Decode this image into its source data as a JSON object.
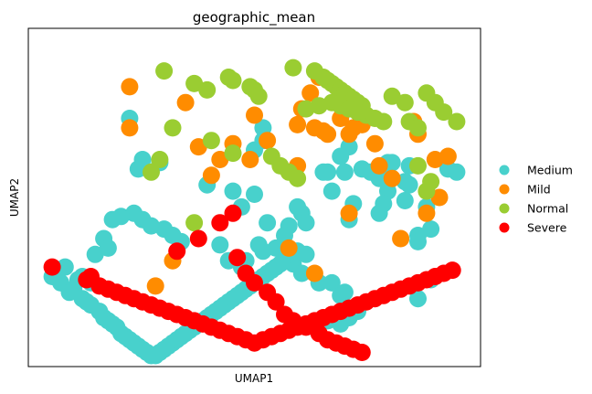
{
  "chart_data": {
    "type": "scatter",
    "title": "geographic_mean",
    "xlabel": "UMAP1",
    "ylabel": "UMAP2",
    "xlim": [
      0,
      100
    ],
    "ylim": [
      0,
      100
    ],
    "ticks": false,
    "grid": false,
    "legend": "right",
    "series": [
      {
        "name": "Medium",
        "color": "#48d1cc",
        "points": [
          [
            21,
            75
          ],
          [
            50,
            65
          ],
          [
            52,
            68
          ],
          [
            24,
            62
          ],
          [
            23,
            59
          ],
          [
            28,
            61
          ],
          [
            45,
            52
          ],
          [
            50,
            51
          ],
          [
            47,
            47
          ],
          [
            39,
            54
          ],
          [
            52,
            72
          ],
          [
            67,
            58
          ],
          [
            72,
            66
          ],
          [
            70,
            63
          ],
          [
            71,
            58
          ],
          [
            66,
            58
          ],
          [
            68,
            52
          ],
          [
            60,
            47
          ],
          [
            61,
            45
          ],
          [
            62,
            42
          ],
          [
            75,
            59
          ],
          [
            77,
            58
          ],
          [
            79,
            56
          ],
          [
            80,
            57
          ],
          [
            82,
            61
          ],
          [
            81,
            52
          ],
          [
            80,
            48
          ],
          [
            86,
            60
          ],
          [
            85,
            55
          ],
          [
            79,
            45
          ],
          [
            73,
            48
          ],
          [
            72,
            43
          ],
          [
            81,
            61
          ],
          [
            86,
            54
          ],
          [
            85,
            49
          ],
          [
            91,
            40
          ],
          [
            90,
            47
          ],
          [
            88,
            38
          ],
          [
            88,
            36
          ],
          [
            91,
            24
          ],
          [
            88,
            18
          ],
          [
            95,
            59
          ],
          [
            97,
            58
          ],
          [
            53,
            42
          ],
          [
            58,
            41
          ],
          [
            57,
            38
          ],
          [
            51,
            35
          ],
          [
            55,
            34
          ],
          [
            60,
            33
          ],
          [
            62,
            32
          ],
          [
            59,
            29
          ],
          [
            61,
            26
          ],
          [
            65,
            23
          ],
          [
            68,
            23
          ],
          [
            71,
            20
          ],
          [
            70,
            19
          ],
          [
            74,
            14
          ],
          [
            72,
            12
          ],
          [
            70,
            10
          ],
          [
            67,
            11
          ],
          [
            52,
            33
          ],
          [
            48,
            30
          ],
          [
            47,
            28
          ],
          [
            44,
            30
          ],
          [
            42,
            35
          ],
          [
            33,
            36
          ],
          [
            31,
            38
          ],
          [
            29,
            40
          ],
          [
            26,
            41
          ],
          [
            24,
            43
          ],
          [
            22,
            45
          ],
          [
            19,
            44
          ],
          [
            17,
            43
          ],
          [
            15,
            37
          ],
          [
            13,
            32
          ],
          [
            16,
            34
          ],
          [
            10,
            25
          ],
          [
            12,
            23
          ],
          [
            6,
            28
          ],
          [
            4,
            27
          ],
          [
            3,
            25
          ],
          [
            5,
            23
          ],
          [
            7,
            20
          ],
          [
            9,
            24
          ],
          [
            8,
            21
          ],
          [
            10,
            18
          ],
          [
            11,
            17
          ],
          [
            12,
            16
          ],
          [
            14,
            14
          ],
          [
            15,
            12
          ],
          [
            16,
            11
          ],
          [
            17,
            10
          ],
          [
            18,
            9
          ],
          [
            19,
            7
          ],
          [
            20,
            6
          ],
          [
            21,
            5
          ],
          [
            22,
            4
          ],
          [
            23,
            3
          ],
          [
            24,
            2
          ],
          [
            25,
            1
          ],
          [
            26,
            0
          ],
          [
            27,
            0
          ],
          [
            28,
            1
          ],
          [
            29,
            2
          ],
          [
            30,
            3
          ],
          [
            31,
            4
          ],
          [
            32,
            5
          ],
          [
            33,
            6
          ],
          [
            34,
            7
          ],
          [
            35,
            8
          ],
          [
            36,
            9
          ],
          [
            37,
            10
          ],
          [
            38,
            11
          ],
          [
            39,
            12
          ],
          [
            40,
            13
          ],
          [
            41,
            14
          ],
          [
            42,
            15
          ],
          [
            43,
            16
          ],
          [
            44,
            17
          ],
          [
            45,
            18
          ],
          [
            46,
            19
          ],
          [
            47,
            20
          ],
          [
            48,
            21
          ],
          [
            49,
            22
          ],
          [
            50,
            23
          ],
          [
            51,
            24
          ],
          [
            52,
            25
          ],
          [
            53,
            26
          ],
          [
            54,
            27
          ],
          [
            55,
            28
          ],
          [
            56,
            29
          ],
          [
            57,
            30
          ],
          [
            58,
            31
          ],
          [
            59,
            32
          ],
          [
            60,
            33
          ]
        ]
      },
      {
        "name": "Mild",
        "color": "#ff8c00",
        "points": [
          [
            21,
            85
          ],
          [
            34,
            80
          ],
          [
            21,
            72
          ],
          [
            50,
            76
          ],
          [
            60,
            73
          ],
          [
            63,
            83
          ],
          [
            65,
            88
          ],
          [
            61,
            78
          ],
          [
            64,
            72
          ],
          [
            66,
            71
          ],
          [
            67,
            70
          ],
          [
            70,
            75
          ],
          [
            72,
            70
          ],
          [
            73,
            72
          ],
          [
            75,
            73
          ],
          [
            78,
            67
          ],
          [
            82,
            56
          ],
          [
            87,
            74
          ],
          [
            88,
            70
          ],
          [
            92,
            62
          ],
          [
            93,
            50
          ],
          [
            95,
            63
          ],
          [
            49,
            62
          ],
          [
            42,
            62
          ],
          [
            40,
            57
          ],
          [
            37,
            66
          ],
          [
            45,
            67
          ],
          [
            53,
            68
          ],
          [
            60,
            60
          ],
          [
            72,
            45
          ],
          [
            58,
            34
          ],
          [
            64,
            26
          ],
          [
            27,
            22
          ],
          [
            31,
            30
          ],
          [
            84,
            37
          ],
          [
            79,
            60
          ],
          [
            90,
            45
          ]
        ]
      },
      {
        "name": "Normal",
        "color": "#9acd32",
        "points": [
          [
            29,
            90
          ],
          [
            36,
            86
          ],
          [
            39,
            84
          ],
          [
            44,
            88
          ],
          [
            45,
            87
          ],
          [
            49,
            85
          ],
          [
            50,
            84
          ],
          [
            51,
            82
          ],
          [
            59,
            91
          ],
          [
            64,
            90
          ],
          [
            66,
            88
          ],
          [
            67,
            87
          ],
          [
            68,
            86
          ],
          [
            69,
            85
          ],
          [
            70,
            84
          ],
          [
            71,
            83
          ],
          [
            72,
            82
          ],
          [
            73,
            81
          ],
          [
            74,
            80
          ],
          [
            75,
            79
          ],
          [
            82,
            82
          ],
          [
            85,
            80
          ],
          [
            86,
            74
          ],
          [
            88,
            72
          ],
          [
            90,
            83
          ],
          [
            92,
            80
          ],
          [
            94,
            77
          ],
          [
            97,
            74
          ],
          [
            88,
            60
          ],
          [
            91,
            55
          ],
          [
            90,
            52
          ],
          [
            31,
            72
          ],
          [
            40,
            68
          ],
          [
            45,
            64
          ],
          [
            54,
            63
          ],
          [
            56,
            60
          ],
          [
            58,
            58
          ],
          [
            60,
            56
          ],
          [
            28,
            62
          ],
          [
            26,
            58
          ],
          [
            36,
            42
          ],
          [
            62,
            78
          ],
          [
            65,
            79
          ],
          [
            68,
            80
          ],
          [
            70,
            79
          ],
          [
            72,
            78
          ],
          [
            74,
            77
          ],
          [
            76,
            76
          ],
          [
            78,
            75
          ],
          [
            80,
            74
          ]
        ]
      },
      {
        "name": "Severe",
        "color": "#ff0000",
        "points": [
          [
            3,
            28
          ],
          [
            11,
            24
          ],
          [
            12,
            25
          ],
          [
            14,
            22
          ],
          [
            16,
            21
          ],
          [
            18,
            20
          ],
          [
            20,
            19
          ],
          [
            22,
            18
          ],
          [
            24,
            17
          ],
          [
            26,
            16
          ],
          [
            28,
            15
          ],
          [
            30,
            14
          ],
          [
            32,
            13
          ],
          [
            34,
            12
          ],
          [
            36,
            11
          ],
          [
            38,
            10
          ],
          [
            40,
            9
          ],
          [
            42,
            8
          ],
          [
            44,
            7
          ],
          [
            46,
            6
          ],
          [
            48,
            5
          ],
          [
            50,
            4
          ],
          [
            52,
            5
          ],
          [
            54,
            6
          ],
          [
            56,
            7
          ],
          [
            58,
            8
          ],
          [
            60,
            9
          ],
          [
            62,
            10
          ],
          [
            64,
            11
          ],
          [
            66,
            12
          ],
          [
            68,
            13
          ],
          [
            70,
            14
          ],
          [
            72,
            15
          ],
          [
            74,
            16
          ],
          [
            76,
            17
          ],
          [
            78,
            18
          ],
          [
            80,
            19
          ],
          [
            82,
            20
          ],
          [
            84,
            21
          ],
          [
            86,
            22
          ],
          [
            88,
            23
          ],
          [
            90,
            24
          ],
          [
            92,
            25
          ],
          [
            94,
            26
          ],
          [
            96,
            27
          ],
          [
            45,
            45
          ],
          [
            42,
            42
          ],
          [
            37,
            37
          ],
          [
            32,
            33
          ],
          [
            46,
            31
          ],
          [
            48,
            26
          ],
          [
            50,
            23
          ],
          [
            53,
            20
          ],
          [
            55,
            17
          ],
          [
            57,
            13
          ],
          [
            59,
            11
          ],
          [
            62,
            9
          ],
          [
            65,
            7
          ],
          [
            67,
            5
          ],
          [
            69,
            4
          ],
          [
            71,
            3
          ],
          [
            73,
            2
          ],
          [
            75,
            1
          ]
        ]
      }
    ]
  }
}
